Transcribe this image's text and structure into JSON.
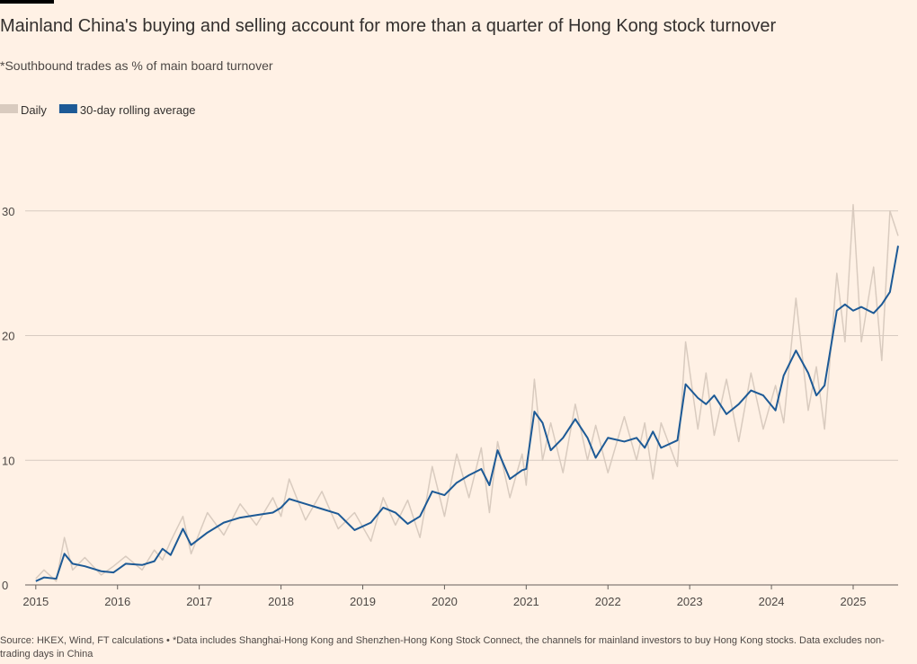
{
  "chart_data": {
    "type": "line",
    "title": "Mainland China's buying and selling account for more than a quarter of Hong Kong stock turnover",
    "subtitle": "*Southbound trades as % of main board turnover",
    "source": "Source: HKEX, Wind, FT calculations • *Data includes Shanghai-Hong Kong and Shenzhen-Hong Kong Stock Connect, the channels for mainland investors to buy Hong Kong stocks. Data excludes non-trading days in China",
    "x": [
      2015.0,
      2015.1,
      2015.25,
      2015.35,
      2015.45,
      2015.6,
      2015.8,
      2015.95,
      2016.1,
      2016.3,
      2016.45,
      2016.55,
      2016.65,
      2016.8,
      2016.9,
      2017.1,
      2017.3,
      2017.5,
      2017.7,
      2017.9,
      2018.0,
      2018.1,
      2018.3,
      2018.5,
      2018.7,
      2018.9,
      2019.1,
      2019.25,
      2019.4,
      2019.55,
      2019.7,
      2019.85,
      2020.0,
      2020.15,
      2020.3,
      2020.45,
      2020.55,
      2020.65,
      2020.8,
      2020.95,
      2021.0,
      2021.1,
      2021.2,
      2021.3,
      2021.45,
      2021.6,
      2021.75,
      2021.85,
      2022.0,
      2022.2,
      2022.35,
      2022.45,
      2022.55,
      2022.65,
      2022.85,
      2022.95,
      2023.1,
      2023.2,
      2023.3,
      2023.45,
      2023.6,
      2023.75,
      2023.9,
      2024.05,
      2024.15,
      2024.3,
      2024.45,
      2024.55,
      2024.65,
      2024.8,
      2024.9,
      2025.0,
      2025.1,
      2025.25,
      2025.35,
      2025.45,
      2025.55
    ],
    "series": [
      {
        "name": "Daily",
        "color": "#d9cbbf",
        "values": [
          0.5,
          1.2,
          0.3,
          3.8,
          1.2,
          2.2,
          0.8,
          1.5,
          2.3,
          1.2,
          2.8,
          2.0,
          3.5,
          5.5,
          2.5,
          5.8,
          4.0,
          6.5,
          4.8,
          7.0,
          5.5,
          8.5,
          5.2,
          7.5,
          4.5,
          5.8,
          3.5,
          7.0,
          4.8,
          6.8,
          3.8,
          9.5,
          5.5,
          10.5,
          7.0,
          11.0,
          5.8,
          11.5,
          7.0,
          10.5,
          8.0,
          16.5,
          10.0,
          13.0,
          9.0,
          14.5,
          10.0,
          12.8,
          9.0,
          13.5,
          10.0,
          13.0,
          8.5,
          13.0,
          9.5,
          19.5,
          12.5,
          17.0,
          12.0,
          16.5,
          11.5,
          17.0,
          12.5,
          16.0,
          13.0,
          23.0,
          14.0,
          17.5,
          12.5,
          25.0,
          19.5,
          30.5,
          19.5,
          25.5,
          18.0,
          30.0,
          28.0
        ]
      },
      {
        "name": "30-day rolling average",
        "color": "#1d5a96",
        "values": [
          0.3,
          0.6,
          0.5,
          2.5,
          1.7,
          1.5,
          1.1,
          1.0,
          1.7,
          1.6,
          1.9,
          2.9,
          2.4,
          4.5,
          3.2,
          4.2,
          5.0,
          5.4,
          5.6,
          5.8,
          6.2,
          6.9,
          6.5,
          6.1,
          5.7,
          4.4,
          5.0,
          6.2,
          5.8,
          4.9,
          5.5,
          7.5,
          7.2,
          8.2,
          8.8,
          9.3,
          8.0,
          10.8,
          8.5,
          9.2,
          9.3,
          13.9,
          13.0,
          10.8,
          11.8,
          13.3,
          11.8,
          10.2,
          11.8,
          11.5,
          11.8,
          11.0,
          12.3,
          11.0,
          11.6,
          16.1,
          15.0,
          14.5,
          15.2,
          13.7,
          14.5,
          15.6,
          15.2,
          14.0,
          16.8,
          18.8,
          17.0,
          15.2,
          16.0,
          22.0,
          22.5,
          22.0,
          22.3,
          21.8,
          22.5,
          23.5,
          27.2
        ]
      }
    ],
    "xlim": [
      2014.87,
      2025.55
    ],
    "xticks": [
      2015,
      2016,
      2017,
      2018,
      2019,
      2020,
      2021,
      2022,
      2023,
      2024,
      2025
    ],
    "ylim": [
      0,
      32
    ],
    "yticks": [
      0,
      10,
      20,
      30
    ],
    "grid": true
  }
}
